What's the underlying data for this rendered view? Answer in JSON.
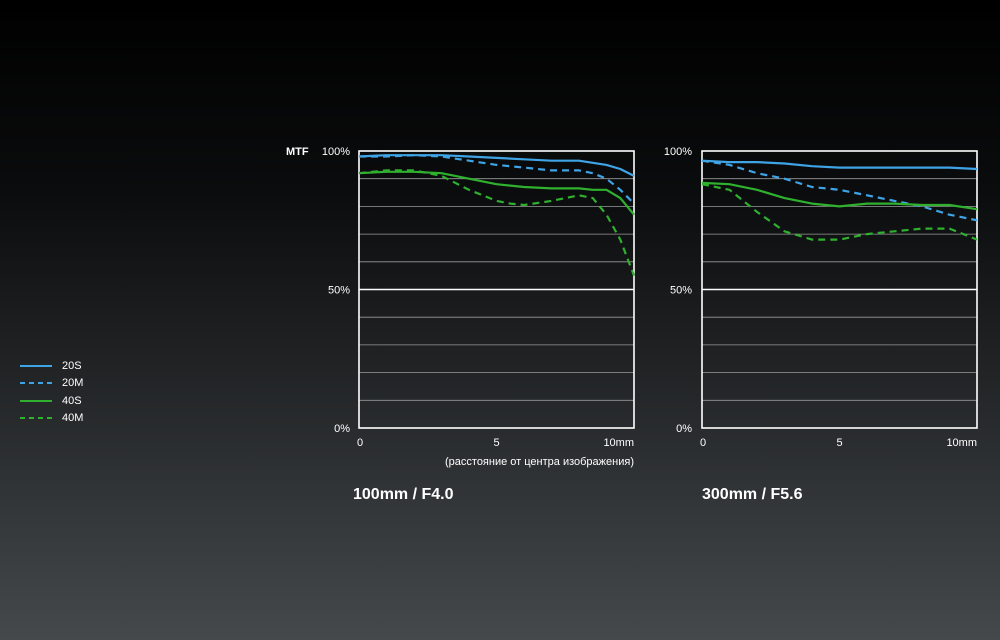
{
  "legend": [
    {
      "name": "20S",
      "color": "#3fa4e6",
      "dash": "solid"
    },
    {
      "name": "20M",
      "color": "#3fa4e6",
      "dash": "dashed"
    },
    {
      "name": "40S",
      "color": "#2fb02f",
      "dash": "solid"
    },
    {
      "name": "40M",
      "color": "#2fb02f",
      "dash": "dashed"
    }
  ],
  "chart_data": [
    {
      "type": "line",
      "title": "100mm / F4.0",
      "ylabel": "MTF",
      "xlabel": "(расстояние от центра изображения)",
      "x_ticks": [
        "0",
        "5",
        "10mm"
      ],
      "y_ticks": [
        "100%",
        "50%",
        "0%"
      ],
      "xlim": [
        0,
        10
      ],
      "ylim": [
        0,
        100
      ],
      "grid": true,
      "series": [
        {
          "name": "20S",
          "x": [
            0,
            1,
            2,
            3,
            4,
            5,
            6,
            7,
            8,
            9,
            9.5,
            10
          ],
          "y": [
            98,
            98.5,
            98.5,
            98.5,
            98,
            97.5,
            97,
            96.5,
            96.5,
            95,
            93.5,
            91
          ]
        },
        {
          "name": "20M",
          "x": [
            0,
            1,
            2,
            3,
            4,
            5,
            6,
            7,
            8,
            8.5,
            9,
            9.5,
            10
          ],
          "y": [
            98,
            98,
            98.5,
            98,
            96.5,
            95,
            94,
            93,
            93,
            92,
            90,
            86,
            81
          ]
        },
        {
          "name": "40S",
          "x": [
            0,
            1,
            2,
            3,
            4,
            5,
            6,
            7,
            8,
            8.5,
            9,
            9.5,
            10
          ],
          "y": [
            92,
            92.5,
            92.5,
            92,
            90,
            88,
            87,
            86.5,
            86.5,
            86,
            86,
            83,
            77
          ]
        },
        {
          "name": "40M",
          "x": [
            0,
            1,
            2,
            3,
            4,
            5,
            5.5,
            6,
            7,
            8,
            8.5,
            9,
            9.5,
            10
          ],
          "y": [
            92,
            93,
            93,
            91,
            86,
            82,
            81,
            80.5,
            82,
            84,
            83,
            77,
            68,
            55
          ]
        }
      ]
    },
    {
      "type": "line",
      "title": "300mm / F5.6",
      "x_ticks": [
        "0",
        "5",
        "10mm"
      ],
      "y_ticks": [
        "100%",
        "50%",
        "0%"
      ],
      "xlim": [
        0,
        10
      ],
      "ylim": [
        0,
        100
      ],
      "grid": true,
      "series": [
        {
          "name": "20S",
          "x": [
            0,
            1,
            2,
            3,
            4,
            5,
            6,
            7,
            8,
            9,
            10
          ],
          "y": [
            96.5,
            96,
            96,
            95.5,
            94.5,
            94,
            94,
            94,
            94,
            94,
            93.5
          ]
        },
        {
          "name": "20M",
          "x": [
            0,
            1,
            2,
            3,
            4,
            5,
            6,
            7,
            8,
            9,
            10
          ],
          "y": [
            96.5,
            95,
            92,
            90,
            87,
            86,
            84,
            82,
            80,
            77,
            75
          ]
        },
        {
          "name": "40S",
          "x": [
            0,
            1,
            2,
            3,
            4,
            5,
            6,
            7,
            8,
            9,
            10
          ],
          "y": [
            88.5,
            88,
            86,
            83,
            81,
            80,
            81,
            81,
            80.5,
            80.5,
            79
          ]
        },
        {
          "name": "40M",
          "x": [
            0,
            1,
            2,
            3,
            4,
            5,
            6,
            7,
            8,
            9,
            10
          ],
          "y": [
            88,
            86,
            78,
            71,
            68,
            68,
            70,
            71,
            72,
            72,
            68
          ]
        }
      ]
    }
  ]
}
